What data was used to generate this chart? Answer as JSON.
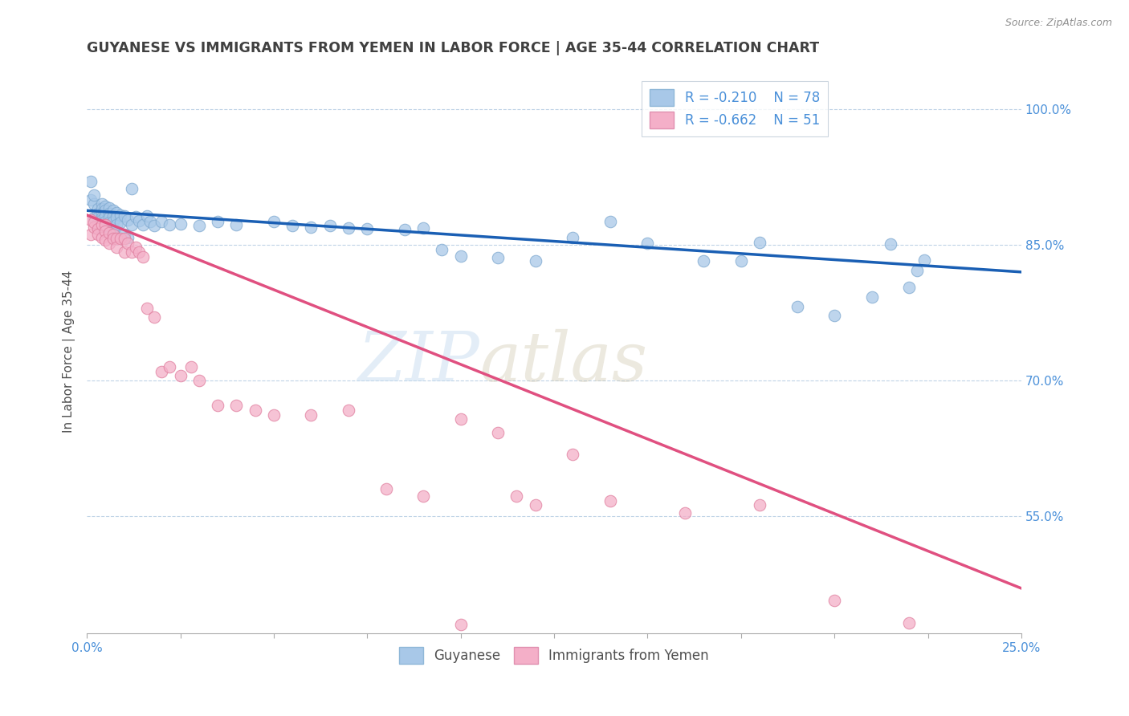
{
  "title": "GUYANESE VS IMMIGRANTS FROM YEMEN IN LABOR FORCE | AGE 35-44 CORRELATION CHART",
  "source": "Source: ZipAtlas.com",
  "ylabel": "In Labor Force | Age 35-44",
  "xmin": 0.0,
  "xmax": 0.25,
  "ymin": 0.42,
  "ymax": 1.045,
  "yticks": [
    0.55,
    0.7,
    0.85,
    1.0
  ],
  "ytick_labels": [
    "55.0%",
    "70.0%",
    "85.0%",
    "100.0%"
  ],
  "xticks": [
    0.0,
    0.025,
    0.05,
    0.075,
    0.1,
    0.125,
    0.15,
    0.175,
    0.2,
    0.225,
    0.25
  ],
  "xtick_labels": [
    "0.0%",
    "",
    "",
    "",
    "",
    "",
    "",
    "",
    "",
    "",
    "25.0%"
  ],
  "legend_r1": "R = -0.210",
  "legend_n1": "N = 78",
  "legend_r2": "R = -0.662",
  "legend_n2": "N = 51",
  "color_blue": "#a8c8e8",
  "color_pink": "#f4afc8",
  "line_blue": "#1a5fb4",
  "line_pink": "#e05080",
  "watermark_zip": "ZIP",
  "watermark_atlas": "atlas",
  "title_color": "#404040",
  "axis_color": "#4a90d9",
  "guyanese_x": [
    0.001,
    0.001,
    0.002,
    0.002,
    0.002,
    0.003,
    0.003,
    0.003,
    0.003,
    0.003,
    0.004,
    0.004,
    0.004,
    0.004,
    0.004,
    0.004,
    0.005,
    0.005,
    0.005,
    0.005,
    0.005,
    0.005,
    0.006,
    0.006,
    0.006,
    0.006,
    0.007,
    0.007,
    0.007,
    0.007,
    0.008,
    0.008,
    0.008,
    0.009,
    0.009,
    0.01,
    0.01,
    0.011,
    0.011,
    0.012,
    0.012,
    0.013,
    0.014,
    0.015,
    0.016,
    0.017,
    0.018,
    0.02,
    0.022,
    0.025,
    0.03,
    0.035,
    0.04,
    0.05,
    0.055,
    0.06,
    0.065,
    0.07,
    0.075,
    0.085,
    0.09,
    0.095,
    0.1,
    0.11,
    0.12,
    0.13,
    0.14,
    0.15,
    0.165,
    0.175,
    0.18,
    0.19,
    0.2,
    0.21,
    0.215,
    0.22,
    0.222,
    0.224
  ],
  "guyanese_y": [
    0.9,
    0.92,
    0.88,
    0.895,
    0.905,
    0.89,
    0.885,
    0.875,
    0.88,
    0.87,
    0.895,
    0.89,
    0.885,
    0.88,
    0.878,
    0.87,
    0.893,
    0.888,
    0.882,
    0.876,
    0.872,
    0.868,
    0.891,
    0.885,
    0.88,
    0.875,
    0.888,
    0.882,
    0.876,
    0.865,
    0.886,
    0.88,
    0.872,
    0.883,
    0.875,
    0.882,
    0.862,
    0.878,
    0.858,
    0.912,
    0.872,
    0.881,
    0.877,
    0.872,
    0.882,
    0.876,
    0.871,
    0.876,
    0.872,
    0.873,
    0.871,
    0.876,
    0.872,
    0.876,
    0.871,
    0.87,
    0.871,
    0.869,
    0.868,
    0.867,
    0.869,
    0.845,
    0.838,
    0.836,
    0.832,
    0.858,
    0.876,
    0.852,
    0.832,
    0.832,
    0.853,
    0.782,
    0.772,
    0.792,
    0.851,
    0.803,
    0.822,
    0.833
  ],
  "yemen_x": [
    0.001,
    0.001,
    0.002,
    0.002,
    0.003,
    0.003,
    0.004,
    0.004,
    0.005,
    0.005,
    0.005,
    0.006,
    0.006,
    0.007,
    0.007,
    0.008,
    0.008,
    0.009,
    0.01,
    0.01,
    0.011,
    0.012,
    0.013,
    0.014,
    0.015,
    0.016,
    0.018,
    0.02,
    0.022,
    0.025,
    0.028,
    0.03,
    0.035,
    0.04,
    0.045,
    0.05,
    0.06,
    0.07,
    0.08,
    0.09,
    0.1,
    0.11,
    0.115,
    0.12,
    0.13,
    0.14,
    0.16,
    0.18,
    0.2,
    0.22,
    0.1
  ],
  "yemen_y": [
    0.878,
    0.862,
    0.87,
    0.875,
    0.868,
    0.862,
    0.872,
    0.858,
    0.872,
    0.865,
    0.855,
    0.863,
    0.852,
    0.862,
    0.857,
    0.857,
    0.847,
    0.857,
    0.857,
    0.842,
    0.852,
    0.842,
    0.847,
    0.842,
    0.837,
    0.78,
    0.77,
    0.71,
    0.715,
    0.705,
    0.715,
    0.7,
    0.672,
    0.672,
    0.667,
    0.662,
    0.662,
    0.667,
    0.58,
    0.572,
    0.657,
    0.642,
    0.572,
    0.562,
    0.618,
    0.567,
    0.553,
    0.562,
    0.457,
    0.432,
    0.43
  ],
  "blue_trend_x": [
    0.0,
    0.25
  ],
  "blue_trend_y": [
    0.888,
    0.82
  ],
  "pink_trend_x": [
    0.0,
    0.25
  ],
  "pink_trend_y": [
    0.883,
    0.47
  ]
}
